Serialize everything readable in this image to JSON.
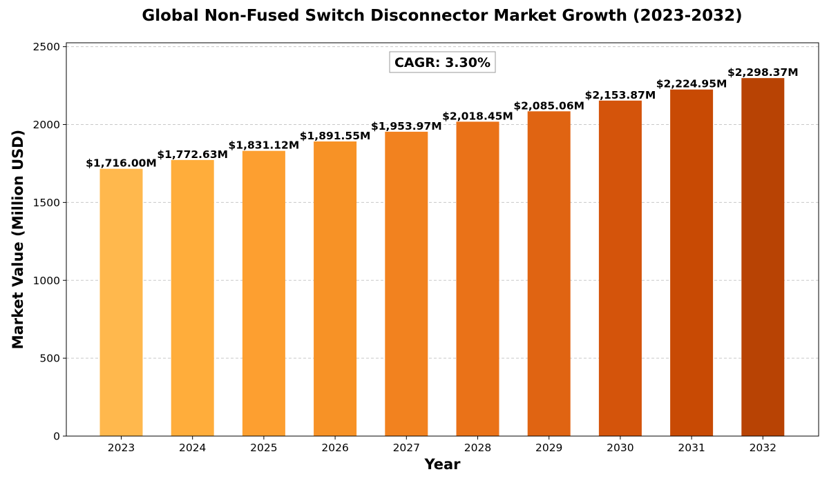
{
  "chart_data": {
    "type": "bar",
    "title": "Global Non-Fused Switch Disconnector Market Growth (2023-2032)",
    "xlabel": "Year",
    "ylabel": "Market Value (Million USD)",
    "categories": [
      "2023",
      "2024",
      "2025",
      "2026",
      "2027",
      "2028",
      "2029",
      "2030",
      "2031",
      "2032"
    ],
    "values": [
      1716.0,
      1772.63,
      1831.12,
      1891.55,
      1953.97,
      2018.45,
      2085.06,
      2153.87,
      2224.95,
      2298.37
    ],
    "value_labels": [
      "$1,716.00M",
      "$1,772.63M",
      "$1,831.12M",
      "$1,891.55M",
      "$1,953.97M",
      "$2,018.45M",
      "$2,085.06M",
      "$2,153.87M",
      "$2,224.95M",
      "$2,298.37M"
    ],
    "bar_colors": [
      "#FFB84D",
      "#FFAD3B",
      "#FD9F30",
      "#F79226",
      "#F2821F",
      "#EA7218",
      "#E06412",
      "#D4540B",
      "#C84A04",
      "#B84304"
    ],
    "ylim": [
      0,
      2525
    ],
    "yticks": [
      0,
      500,
      1000,
      1500,
      2000,
      2500
    ],
    "grid": "horizontal dashed",
    "annotation": "CAGR: 3.30%"
  }
}
